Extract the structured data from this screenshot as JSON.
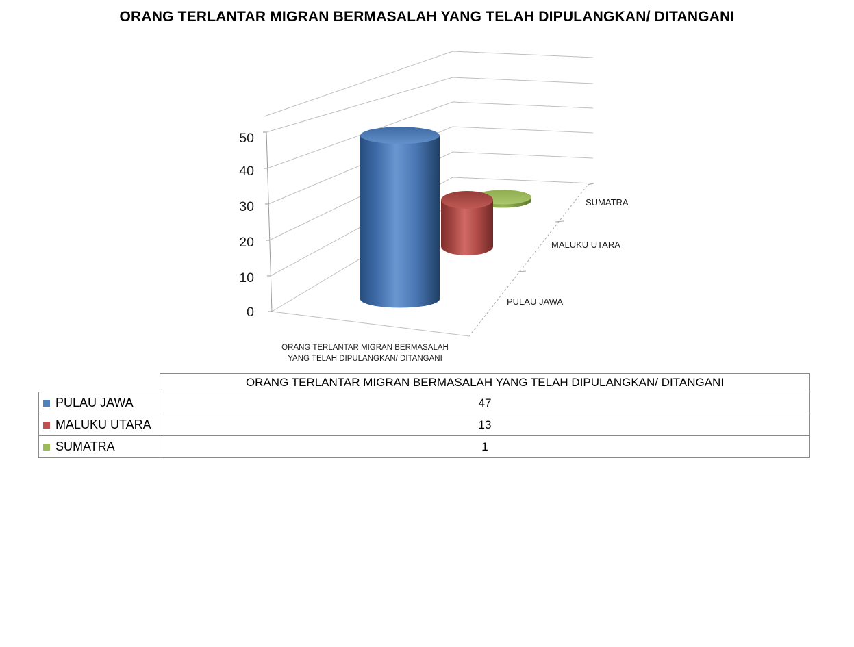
{
  "title": "ORANG TERLANTAR MIGRAN BERMASALAH YANG TELAH DIPULANGKAN/ DITANGANI",
  "chart_data": {
    "type": "bar",
    "subtype": "3d-cylinder",
    "title": "ORANG TERLANTAR MIGRAN BERMASALAH YANG TELAH DIPULANGKAN/ DITANGANI",
    "categories": [
      "PULAU JAWA",
      "MALUKU UTARA",
      "SUMATRA"
    ],
    "values": [
      47,
      13,
      1
    ],
    "series_colors": [
      "#4F81BD",
      "#C0504D",
      "#9BBB59"
    ],
    "value_axis": {
      "min": 0,
      "max": 50,
      "step": 10,
      "tick_labels_top_to_bottom": [
        "50",
        "40",
        "30",
        "20",
        "10",
        "0"
      ]
    },
    "category_axis_label_lines": [
      "ORANG TERLANTAR MIGRAN BERMASALAH",
      "YANG TELAH DIPULANGKAN/ DITANGANI"
    ],
    "grid": true,
    "legend_position": "table-left-column"
  },
  "table": {
    "header": "ORANG TERLANTAR MIGRAN BERMASALAH YANG TELAH DIPULANGKAN/ DITANGANI",
    "rows": [
      {
        "label": "PULAU JAWA",
        "value": "47",
        "color": "#4F81BD"
      },
      {
        "label": "MALUKU UTARA",
        "value": "13",
        "color": "#C0504D"
      },
      {
        "label": "SUMATRA",
        "value": "1",
        "color": "#9BBB59"
      }
    ]
  }
}
